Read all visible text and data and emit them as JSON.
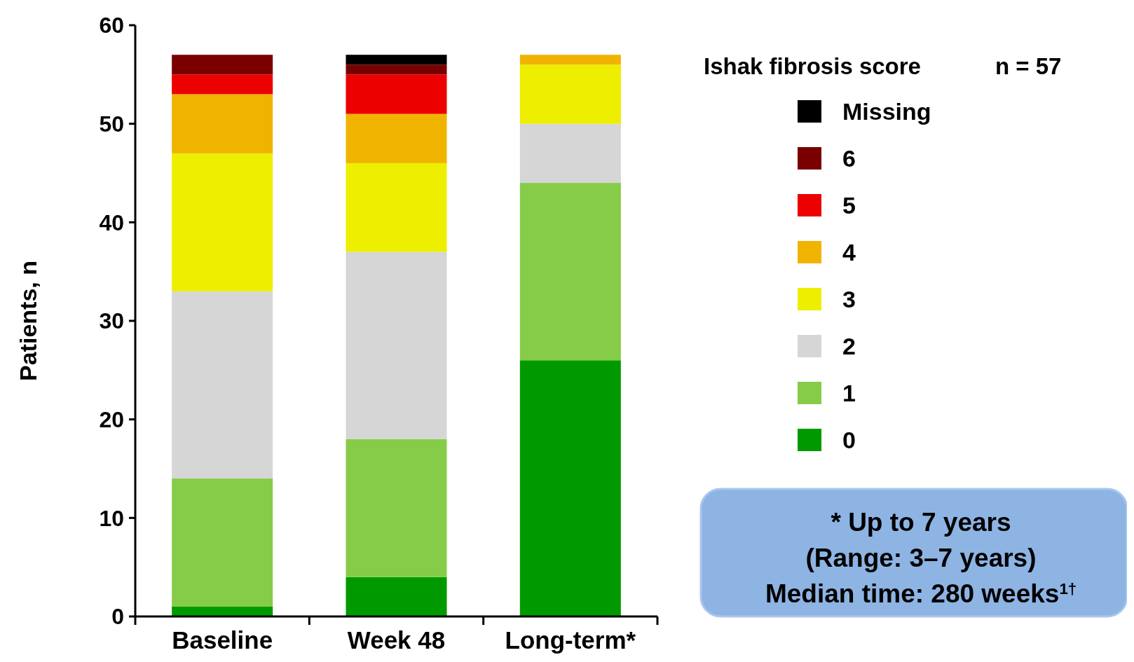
{
  "chart_data": {
    "type": "bar",
    "stacked": true,
    "ylabel": "Patients, n",
    "legend_title": "Ishak fibrosis score",
    "legend": "top right",
    "categories": [
      "Baseline",
      "Week 48",
      "Long-term*"
    ],
    "ylim": [
      0,
      60
    ],
    "yticks": [
      0,
      10,
      20,
      30,
      40,
      50,
      60
    ],
    "grid": false,
    "series": [
      {
        "name": "0",
        "color": "#009a00",
        "values": [
          1,
          4,
          26
        ]
      },
      {
        "name": "1",
        "color": "#86cc48",
        "values": [
          13,
          14,
          18
        ]
      },
      {
        "name": "2",
        "color": "#d6d6d6",
        "values": [
          19,
          19,
          6
        ]
      },
      {
        "name": "3",
        "color": "#eeee00",
        "values": [
          14,
          9,
          6
        ]
      },
      {
        "name": "4",
        "color": "#f0b400",
        "values": [
          6,
          5,
          1
        ]
      },
      {
        "name": "5",
        "color": "#ec0000",
        "values": [
          2,
          4,
          0
        ]
      },
      {
        "name": "6",
        "color": "#7a0000",
        "values": [
          2,
          1,
          0
        ]
      },
      {
        "name": "Missing",
        "color": "#000000",
        "values": [
          0,
          1,
          0
        ]
      }
    ],
    "annotations": [
      "n = 57",
      "* Up to 7 years",
      "(Range: 3–7 years)",
      "Median time: 280 weeks$^{1†}$"
    ]
  }
}
